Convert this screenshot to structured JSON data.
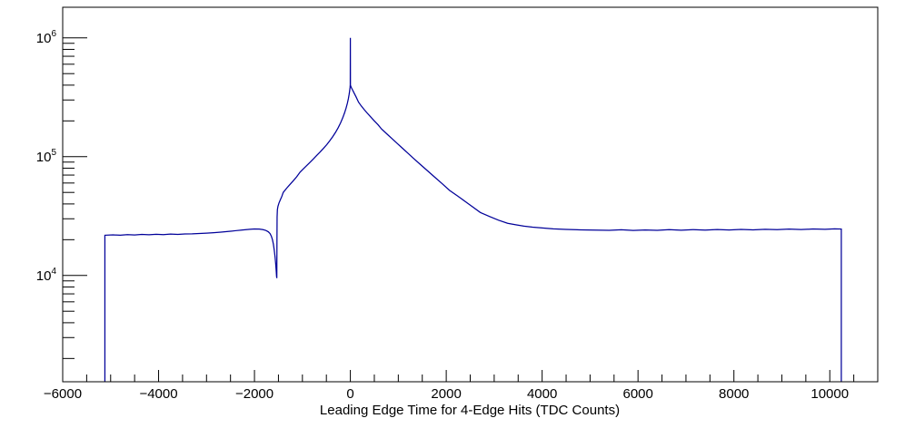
{
  "chart_data": {
    "type": "line",
    "title": "",
    "xlabel": "Leading Edge Time for 4-Edge Hits (TDC Counts)",
    "ylabel": "",
    "x_range": [
      -6000,
      11000
    ],
    "y_scale": "log",
    "y_range": [
      1274,
      1810000
    ],
    "grid": "off",
    "legend": "none",
    "x_major_tick_step": 2000,
    "x_minor_tick_step": 500,
    "x_tick_labels": [
      {
        "value": -6000,
        "label": "−6000"
      },
      {
        "value": -4000,
        "label": "−4000"
      },
      {
        "value": -2000,
        "label": "−2000"
      },
      {
        "value": 0,
        "label": "0"
      },
      {
        "value": 2000,
        "label": "2000"
      },
      {
        "value": 4000,
        "label": "4000"
      },
      {
        "value": 6000,
        "label": "6000"
      },
      {
        "value": 8000,
        "label": "8000"
      },
      {
        "value": 10000,
        "label": "10000"
      }
    ],
    "y_tick_labels": [
      {
        "value": 10000,
        "base": "10",
        "exp": "4"
      },
      {
        "value": 100000,
        "base": "10",
        "exp": "5"
      },
      {
        "value": 1000000,
        "base": "10",
        "exp": "6"
      }
    ],
    "line_color": "#000099",
    "frame_color": "#000000",
    "background_color": "#ffffff",
    "series": [
      {
        "name": "leading_edge_time_4edge_hits",
        "data_start_x": -5120,
        "data_end_x": 10240,
        "dip_x": -1536,
        "dip_min_y": 9500,
        "spike_x": 0,
        "spike_y": 1000000,
        "peak_y": 411000,
        "left_plateau_y": 22000,
        "right_plateau_y": 24300,
        "points": [
          [
            -5120,
            1274
          ],
          [
            -5120,
            21800
          ],
          [
            -4950,
            21950
          ],
          [
            -4800,
            21800
          ],
          [
            -4650,
            22050
          ],
          [
            -4500,
            21900
          ],
          [
            -4350,
            22150
          ],
          [
            -4200,
            22000
          ],
          [
            -4050,
            22200
          ],
          [
            -3900,
            22050
          ],
          [
            -3750,
            22300
          ],
          [
            -3600,
            22150
          ],
          [
            -3450,
            22350
          ],
          [
            -3300,
            22400
          ],
          [
            -3150,
            22550
          ],
          [
            -3000,
            22700
          ],
          [
            -2850,
            22900
          ],
          [
            -2700,
            23150
          ],
          [
            -2550,
            23450
          ],
          [
            -2400,
            23800
          ],
          [
            -2250,
            24150
          ],
          [
            -2100,
            24450
          ],
          [
            -2000,
            24600
          ],
          [
            -1900,
            24550
          ],
          [
            -1820,
            24300
          ],
          [
            -1760,
            23900
          ],
          [
            -1710,
            23300
          ],
          [
            -1675,
            22500
          ],
          [
            -1648,
            21400
          ],
          [
            -1625,
            20000
          ],
          [
            -1605,
            18300
          ],
          [
            -1588,
            16400
          ],
          [
            -1572,
            14500
          ],
          [
            -1558,
            12600
          ],
          [
            -1547,
            11000
          ],
          [
            -1539,
            9800
          ],
          [
            -1534,
            9500
          ],
          [
            -1531,
            20000
          ],
          [
            -1528,
            31000
          ],
          [
            -1522,
            35800
          ],
          [
            -1510,
            38200
          ],
          [
            -1490,
            40600
          ],
          [
            -1462,
            43200
          ],
          [
            -1430,
            46200
          ],
          [
            -1400,
            50000
          ],
          [
            -1330,
            54200
          ],
          [
            -1260,
            58300
          ],
          [
            -1190,
            62700
          ],
          [
            -1120,
            67600
          ],
          [
            -1050,
            74000
          ],
          [
            -980,
            79000
          ],
          [
            -910,
            84200
          ],
          [
            -840,
            89800
          ],
          [
            -770,
            95800
          ],
          [
            -700,
            102500
          ],
          [
            -630,
            109500
          ],
          [
            -560,
            117500
          ],
          [
            -490,
            126500
          ],
          [
            -430,
            136000
          ],
          [
            -370,
            147000
          ],
          [
            -310,
            160000
          ],
          [
            -255,
            175000
          ],
          [
            -205,
            192000
          ],
          [
            -160,
            212000
          ],
          [
            -122,
            233000
          ],
          [
            -90,
            256000
          ],
          [
            -63,
            281000
          ],
          [
            -42,
            307000
          ],
          [
            -26,
            334000
          ],
          [
            -14,
            360000
          ],
          [
            -6,
            385000
          ],
          [
            -2,
            402000
          ],
          [
            0,
            1000000
          ],
          [
            2,
            400000
          ],
          [
            8,
            392000
          ],
          [
            20,
            382000
          ],
          [
            45,
            365000
          ],
          [
            80,
            342000
          ],
          [
            120,
            318000
          ],
          [
            170,
            288000
          ],
          [
            225,
            268000
          ],
          [
            285,
            250000
          ],
          [
            350,
            233000
          ],
          [
            420,
            217000
          ],
          [
            495,
            201000
          ],
          [
            575,
            186000
          ],
          [
            650,
            171000
          ],
          [
            760,
            155600
          ],
          [
            870,
            141700
          ],
          [
            980,
            129000
          ],
          [
            1090,
            117400
          ],
          [
            1200,
            106900
          ],
          [
            1310,
            97300
          ],
          [
            1460,
            86000
          ],
          [
            1610,
            76000
          ],
          [
            1760,
            67200
          ],
          [
            1915,
            59200
          ],
          [
            2070,
            52000
          ],
          [
            2230,
            46900
          ],
          [
            2390,
            42100
          ],
          [
            2550,
            37800
          ],
          [
            2710,
            33900
          ],
          [
            2900,
            31400
          ],
          [
            3090,
            29200
          ],
          [
            3280,
            27500
          ],
          [
            3450,
            26700
          ],
          [
            3620,
            26000
          ],
          [
            3800,
            25500
          ],
          [
            4000,
            25100
          ],
          [
            4230,
            24700
          ],
          [
            4500,
            24400
          ],
          [
            4800,
            24200
          ],
          [
            5100,
            24100
          ],
          [
            5400,
            24000
          ],
          [
            5650,
            24250
          ],
          [
            5900,
            23950
          ],
          [
            6150,
            24150
          ],
          [
            6400,
            24000
          ],
          [
            6650,
            24300
          ],
          [
            6900,
            24050
          ],
          [
            7150,
            24300
          ],
          [
            7400,
            24100
          ],
          [
            7650,
            24350
          ],
          [
            7900,
            24150
          ],
          [
            8150,
            24400
          ],
          [
            8400,
            24200
          ],
          [
            8650,
            24450
          ],
          [
            8900,
            24300
          ],
          [
            9150,
            24550
          ],
          [
            9400,
            24350
          ],
          [
            9650,
            24600
          ],
          [
            9900,
            24450
          ],
          [
            10100,
            24700
          ],
          [
            10240,
            24600
          ],
          [
            10240,
            1274
          ]
        ]
      }
    ]
  }
}
